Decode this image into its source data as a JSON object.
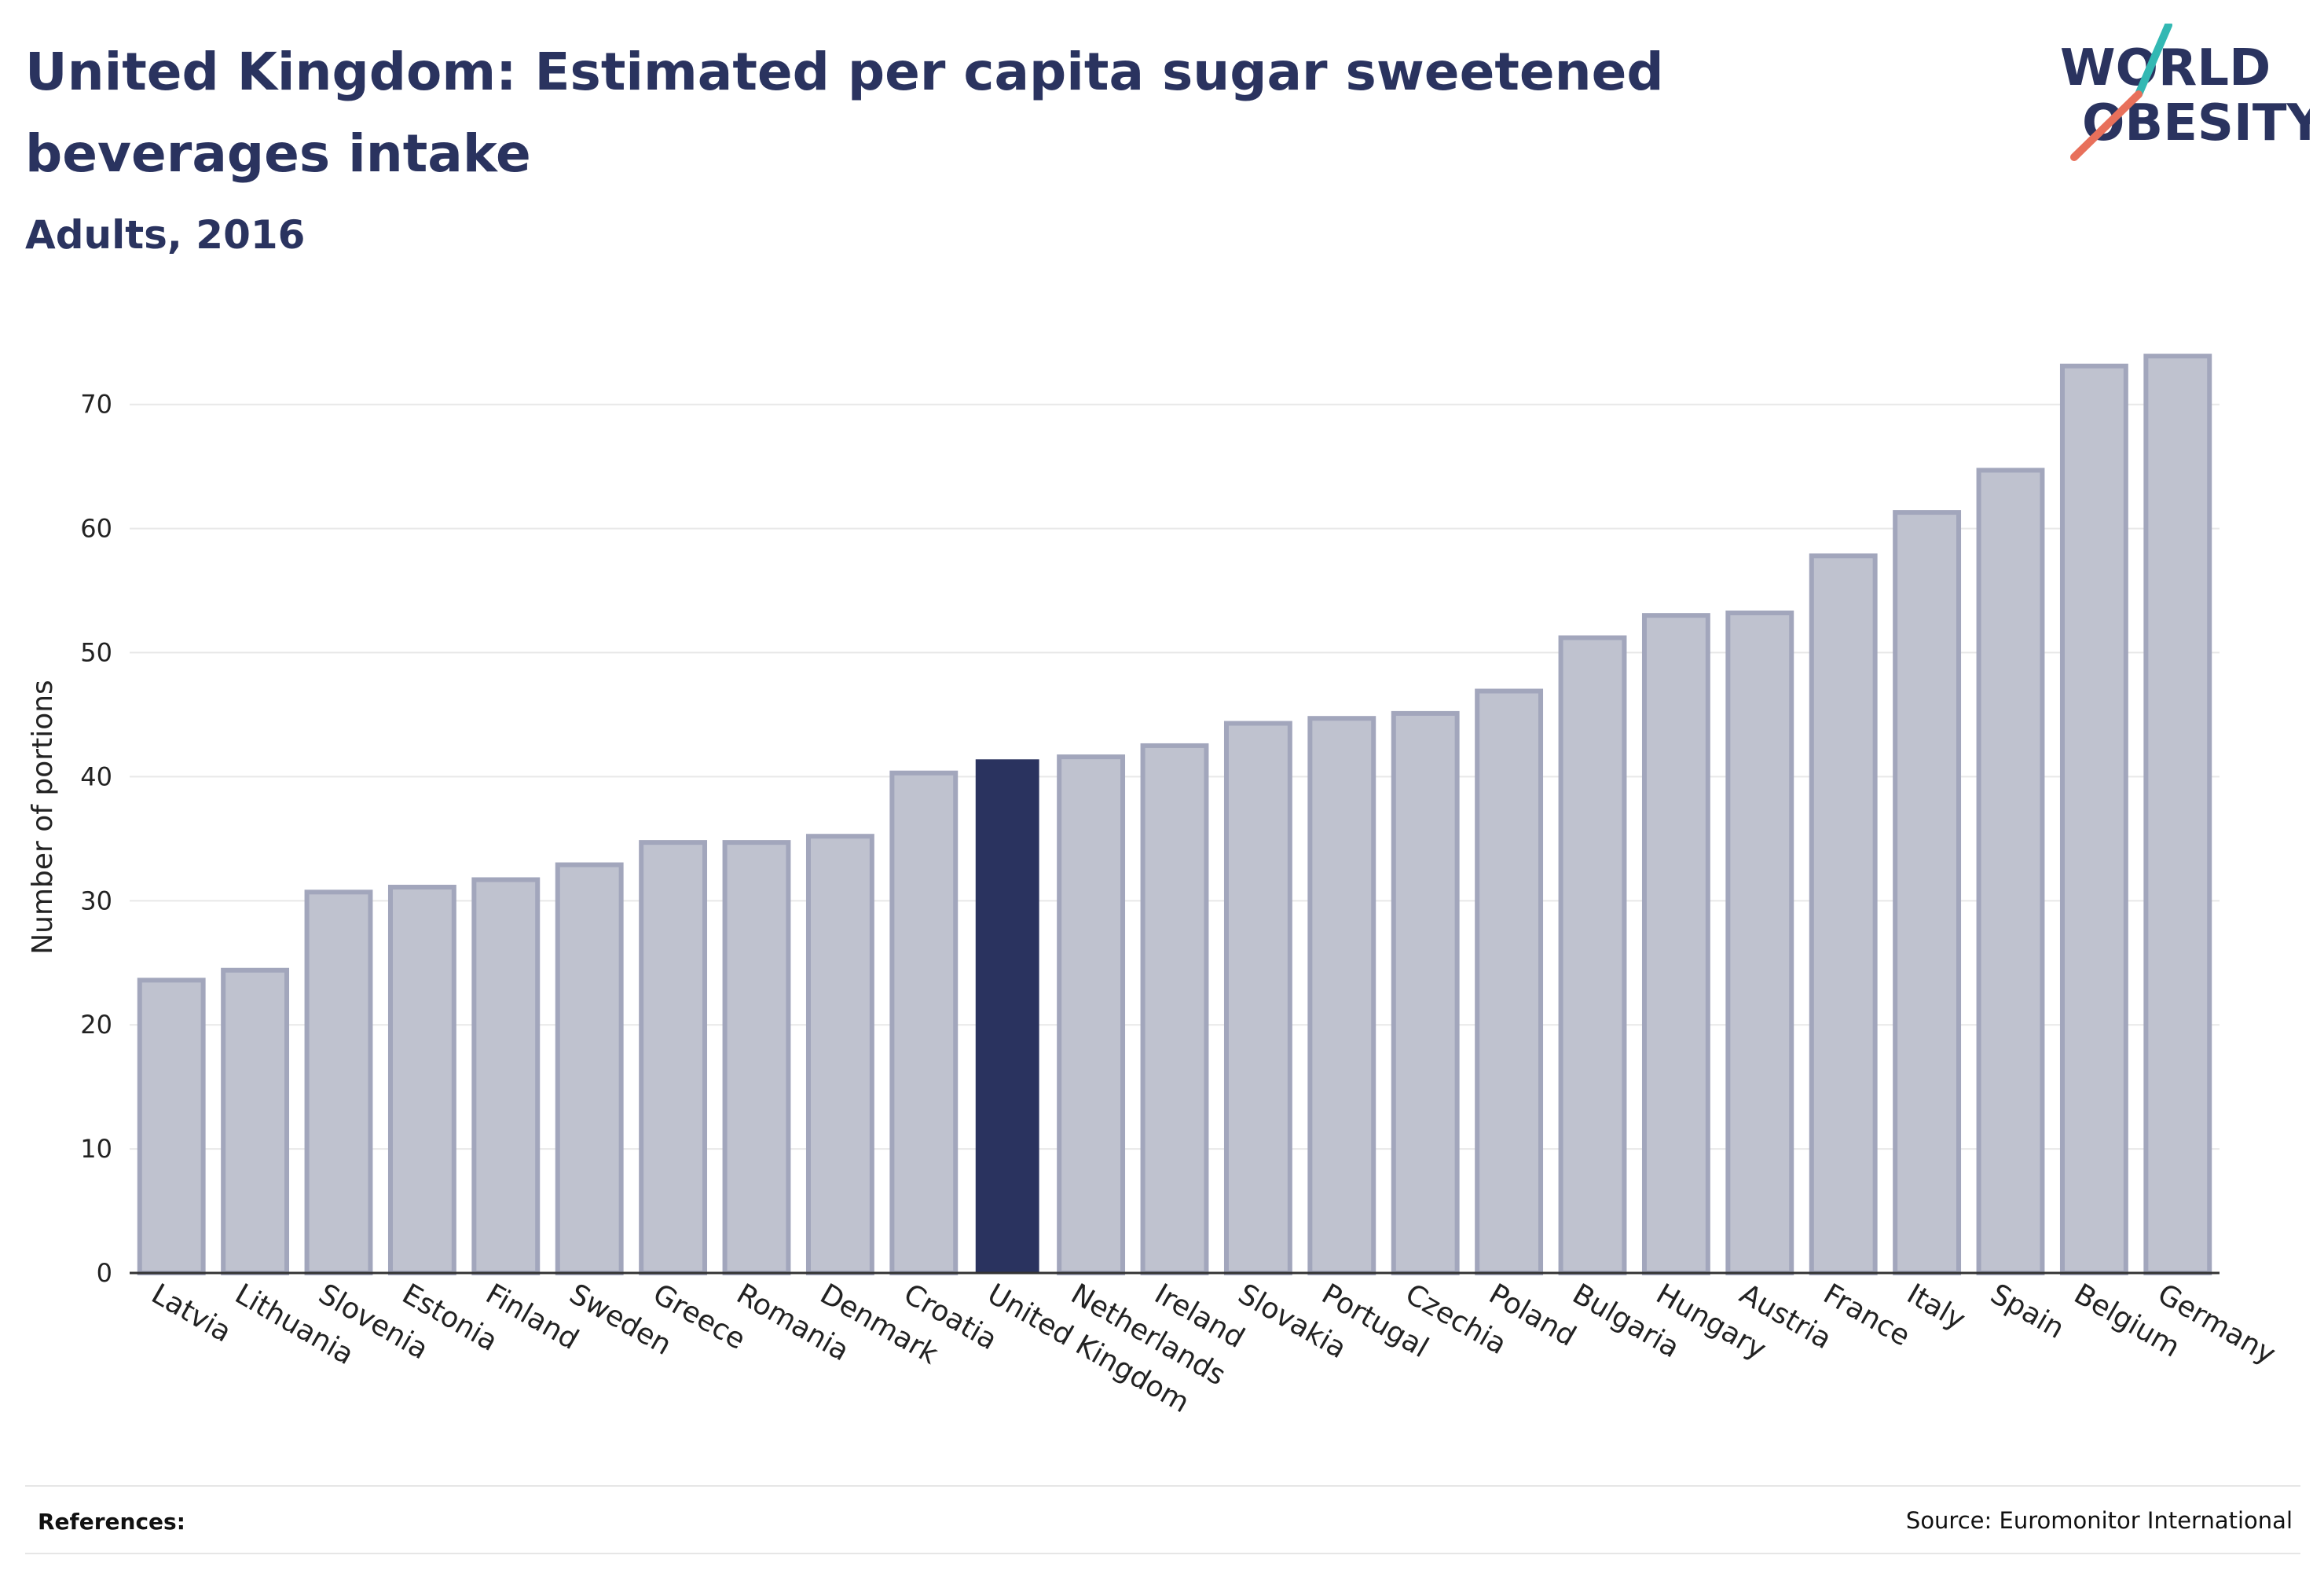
{
  "header": {
    "title": "United Kingdom: Estimated per capita sugar sweetened beverages intake",
    "subtitle": "Adults, 2016"
  },
  "logo": {
    "line1": "WORLD",
    "line2": "OBESITY",
    "colors": [
      "#2a335f",
      "#e8705b",
      "#33b8b3"
    ]
  },
  "colors": {
    "highlight": "#2a335f",
    "bar_fill": "#bfc2cf",
    "bar_stroke": "#a2a6bc",
    "grid": "#e8e8e8",
    "axis": "#333333"
  },
  "chart_data": {
    "type": "bar",
    "ylabel": "Number of portions",
    "xlabel": "",
    "ylim": [
      0,
      76
    ],
    "yticks": [
      0,
      10,
      20,
      30,
      40,
      50,
      60,
      70
    ],
    "grid": true,
    "highlight": "United Kingdom",
    "categories": [
      "Latvia",
      "Lithuania",
      "Slovenia",
      "Estonia",
      "Finland",
      "Sweden",
      "Greece",
      "Romania",
      "Denmark",
      "Croatia",
      "United Kingdom",
      "Netherlands",
      "Ireland",
      "Slovakia",
      "Portugal",
      "Czechia",
      "Poland",
      "Bulgaria",
      "Hungary",
      "Austria",
      "France",
      "Italy",
      "Spain",
      "Belgium",
      "Germany"
    ],
    "values": [
      23.6,
      24.4,
      30.7,
      31.1,
      31.7,
      32.9,
      34.7,
      34.7,
      35.2,
      40.3,
      41.4,
      41.6,
      42.5,
      44.3,
      44.7,
      45.1,
      46.9,
      51.2,
      53.0,
      53.2,
      57.8,
      61.3,
      64.7,
      73.1,
      73.9
    ]
  },
  "footer": {
    "references_label": "References:",
    "source": "Source: Euromonitor International"
  }
}
